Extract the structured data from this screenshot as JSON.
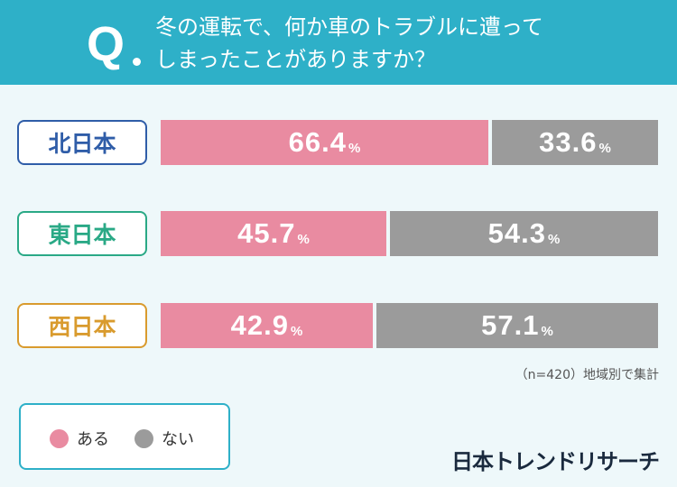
{
  "question": {
    "mark": "Q",
    "line1": "冬の運転で、何か車のトラブルに遭って",
    "line2": "しまったことがありますか？"
  },
  "colors": {
    "header": "#2eb0c8",
    "yes": "#e98ba1",
    "no": "#9b9b9b",
    "north": "#2f5da8",
    "east": "#2aa986",
    "west": "#d99b2e"
  },
  "chart_data": {
    "type": "bar",
    "orientation": "horizontal-stacked-100",
    "categories": [
      "北日本",
      "東日本",
      "西日本"
    ],
    "series": [
      {
        "name": "ある",
        "values": [
          66.4,
          45.7,
          42.9
        ]
      },
      {
        "name": "ない",
        "values": [
          33.6,
          54.3,
          57.1
        ]
      }
    ],
    "unit": "%",
    "legend_position": "bottom-left"
  },
  "note": "（n=420）地域別で集計",
  "brand": "日本トレンドリサーチ"
}
